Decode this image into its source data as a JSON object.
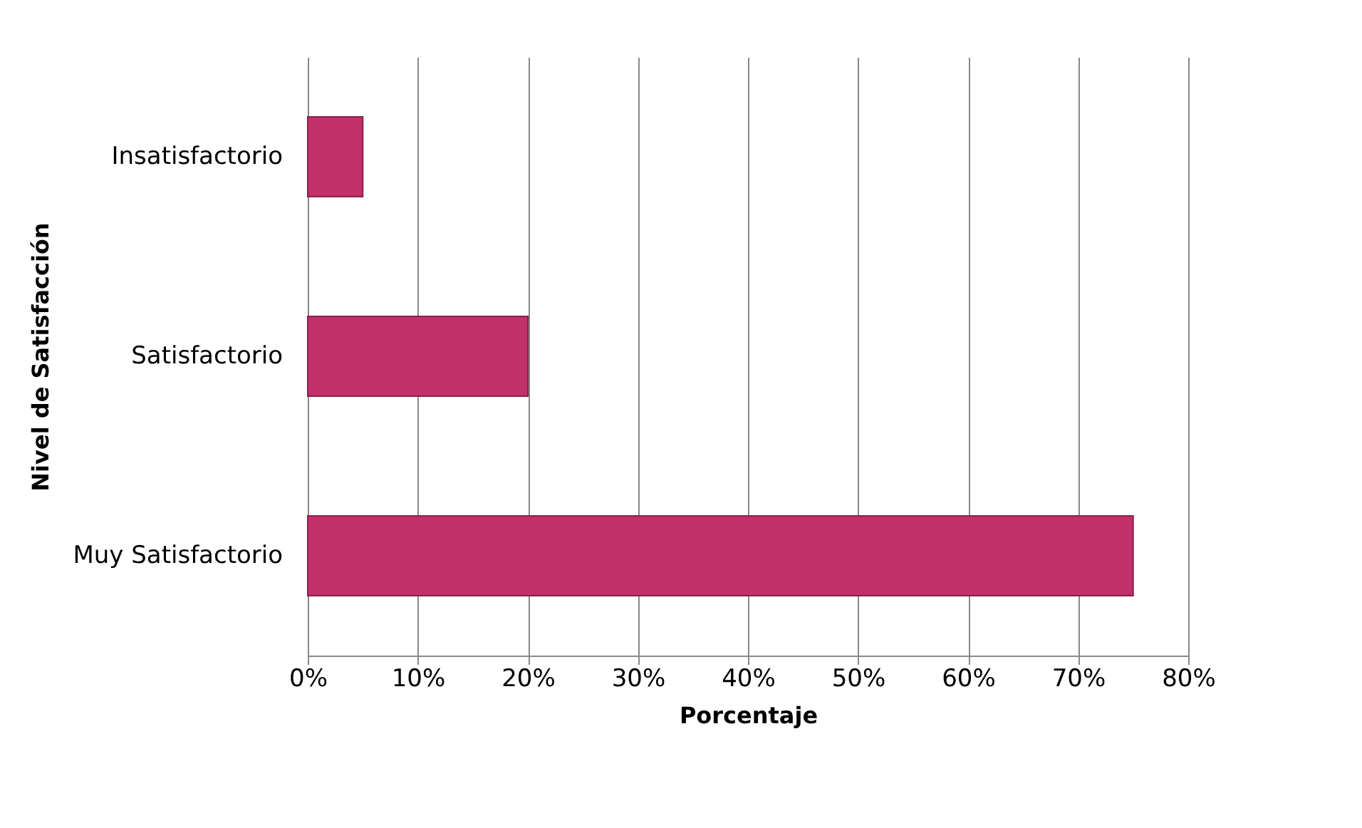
{
  "chart_data": {
    "type": "bar",
    "orientation": "horizontal",
    "xlabel": "Porcentaje",
    "ylabel": "Nivel de Satisfacción",
    "categories": [
      "Insatisfactorio",
      "Satisfactorio",
      "Muy Satisfactorio"
    ],
    "values": [
      5,
      20,
      75
    ],
    "color": "#c2306a",
    "xlim": [
      0,
      80
    ],
    "xticks": [
      {
        "value": 0,
        "label": "0%"
      },
      {
        "value": 10,
        "label": "10%"
      },
      {
        "value": 20,
        "label": "20%"
      },
      {
        "value": 30,
        "label": "30%"
      },
      {
        "value": 40,
        "label": "40%"
      },
      {
        "value": 50,
        "label": "50%"
      },
      {
        "value": 60,
        "label": "60%"
      },
      {
        "value": 70,
        "label": "70%"
      },
      {
        "value": 80,
        "label": "80%"
      }
    ],
    "grid": "x"
  }
}
